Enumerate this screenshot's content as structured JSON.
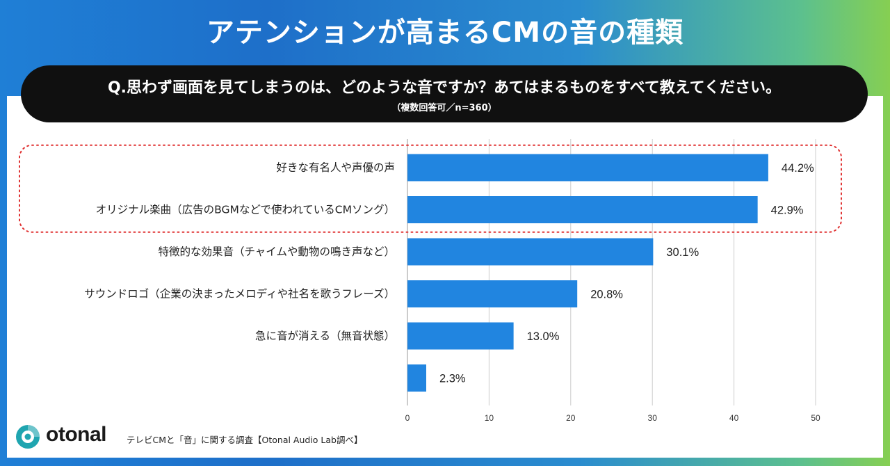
{
  "title": "アテンションが高まるCMの音の種類",
  "question": {
    "main": "Q.思わず画面を見てしまうのは、どのような音ですか？あてはまるものをすべて教えてください。",
    "sub": "（複数回答可／n=360）"
  },
  "footer": {
    "brand": "otonal",
    "note": "テレビCMと「音」に関する調査【Otonal Audio Lab調べ】"
  },
  "colors": {
    "bar": "#2185e0",
    "highlight": "#e03030",
    "grid": "#cccccc"
  },
  "chart_data": {
    "type": "bar",
    "orientation": "horizontal",
    "categories": [
      "好きな有名人や声優の声",
      "オリジナル楽曲（広告のBGMなどで使われているCMソング）",
      "特徴的な効果音（チャイムや動物の鳴き声など）",
      "サウンドロゴ（企業の決まったメロディや社名を歌うフレーズ）",
      "急に音が消える（無音状態）",
      ""
    ],
    "values": [
      44.2,
      42.9,
      30.1,
      20.8,
      13.0,
      2.3
    ],
    "value_labels": [
      "44.2%",
      "42.9%",
      "30.1%",
      "20.8%",
      "13.0%",
      "2.3%"
    ],
    "xlim": [
      0,
      50
    ],
    "xticks": [
      "0",
      "10",
      "20",
      "30",
      "40",
      "50"
    ],
    "grid": true,
    "highlighted": [
      0,
      1
    ]
  }
}
